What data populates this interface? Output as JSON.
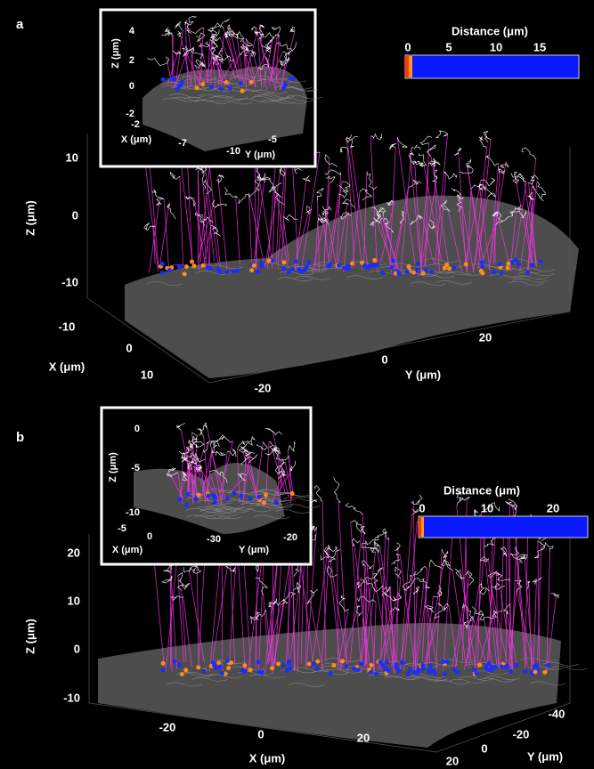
{
  "panels": [
    {
      "label": "a",
      "main": {
        "z_label": "Z (μm)",
        "z_ticks": [
          10,
          0,
          -10
        ],
        "x_label": "X (μm)",
        "x_ticks": [
          -10,
          0,
          10
        ],
        "y_label": "Y (μm)",
        "y_ticks": [
          -20,
          0,
          20
        ]
      },
      "inset": {
        "z_label": "Z (μm)",
        "z_ticks": [
          4,
          2,
          0,
          -2
        ],
        "x_label": "X (μm)",
        "x_ticks": [
          -2,
          -7
        ],
        "y_label": "Y (μm)",
        "y_ticks": [
          -10,
          -5
        ]
      },
      "colorbar": {
        "title": "Distance (μm)",
        "ticks": [
          0,
          5,
          10,
          15
        ]
      }
    },
    {
      "label": "b",
      "main": {
        "z_label": "Z (μm)",
        "z_ticks": [
          20,
          10,
          0,
          -10
        ],
        "x_label": "X (μm)",
        "x_ticks": [
          -20,
          0,
          20
        ],
        "y_label": "Y (μm)",
        "y_ticks": [
          20,
          0,
          -20,
          -40
        ]
      },
      "inset": {
        "z_label": "Z (μm)",
        "z_ticks": [
          0,
          -5,
          -10
        ],
        "x_label": "X (μm)",
        "x_ticks": [
          -5,
          0
        ],
        "y_label": "Y (μm)",
        "y_ticks": [
          -30,
          -20
        ]
      },
      "colorbar": {
        "title": "Distance (μm)",
        "ticks": [
          0,
          10,
          20
        ]
      }
    }
  ]
}
